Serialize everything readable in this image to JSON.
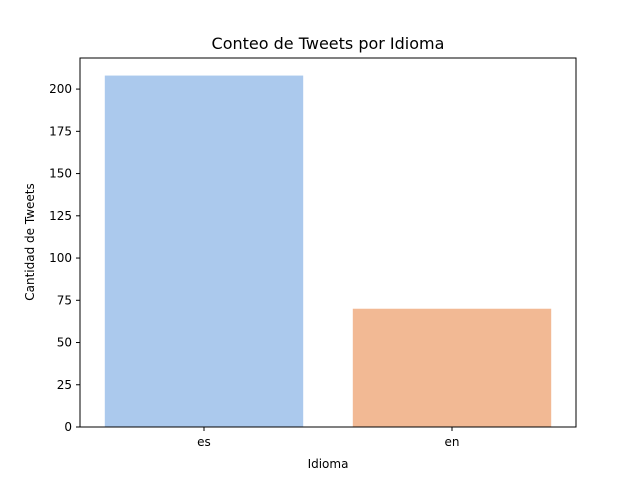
{
  "chart_data": {
    "type": "bar",
    "title": "Conteo de Tweets por Idioma",
    "xlabel": "Idioma",
    "ylabel": "Cantidad de Tweets",
    "categories": [
      "es",
      "en"
    ],
    "values": [
      208,
      70
    ],
    "colors": [
      "#abc9ed",
      "#f2b994"
    ],
    "ylim": [
      0,
      218.4
    ],
    "yticks": [
      0,
      25,
      50,
      75,
      100,
      125,
      150,
      175,
      200
    ],
    "grid": false,
    "legend": "none"
  }
}
